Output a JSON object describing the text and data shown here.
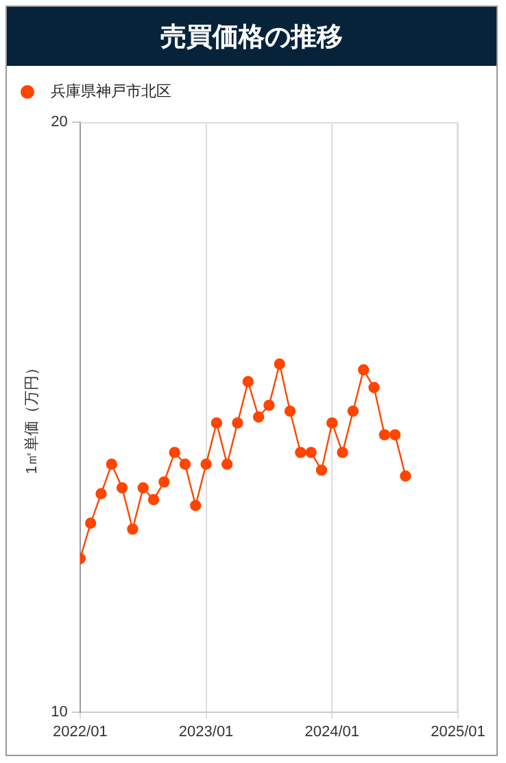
{
  "chart_data": {
    "type": "line",
    "title": "売買価格の推移",
    "ylabel": "1㎡単価（万円）",
    "x": [
      "2022-01",
      "2022-02",
      "2022-03",
      "2022-04",
      "2022-05",
      "2022-06",
      "2022-07",
      "2022-08",
      "2022-09",
      "2022-10",
      "2022-11",
      "2022-12",
      "2023-01",
      "2023-02",
      "2023-03",
      "2023-04",
      "2023-05",
      "2023-06",
      "2023-07",
      "2023-08",
      "2023-09",
      "2023-10",
      "2023-11",
      "2023-12",
      "2024-01",
      "2024-02",
      "2024-03",
      "2024-04",
      "2024-05",
      "2024-06",
      "2024-07",
      "2024-08"
    ],
    "series": [
      {
        "name": "兵庫県神戸市北区",
        "color": "#ff4500",
        "values": [
          12.6,
          13.2,
          13.7,
          14.2,
          13.8,
          13.1,
          13.8,
          13.6,
          13.9,
          14.4,
          14.2,
          13.5,
          14.2,
          14.9,
          14.2,
          14.9,
          15.6,
          15.0,
          15.2,
          15.9,
          15.1,
          14.4,
          14.4,
          14.1,
          14.9,
          14.4,
          15.1,
          15.8,
          15.5,
          14.7,
          14.7,
          14.0
        ]
      }
    ],
    "xlim": [
      "2022-01",
      "2025-01"
    ],
    "xticks": [
      {
        "value": "2022-01",
        "label": "2022/01"
      },
      {
        "value": "2023-01",
        "label": "2023/01"
      },
      {
        "value": "2024-01",
        "label": "2024/01"
      },
      {
        "value": "2025-01",
        "label": "2025/01"
      }
    ],
    "ylim": [
      10,
      20
    ],
    "yticks": [
      10,
      20
    ],
    "grid": "x",
    "legend": "top left",
    "marker": "circle",
    "line_style": "solid"
  }
}
